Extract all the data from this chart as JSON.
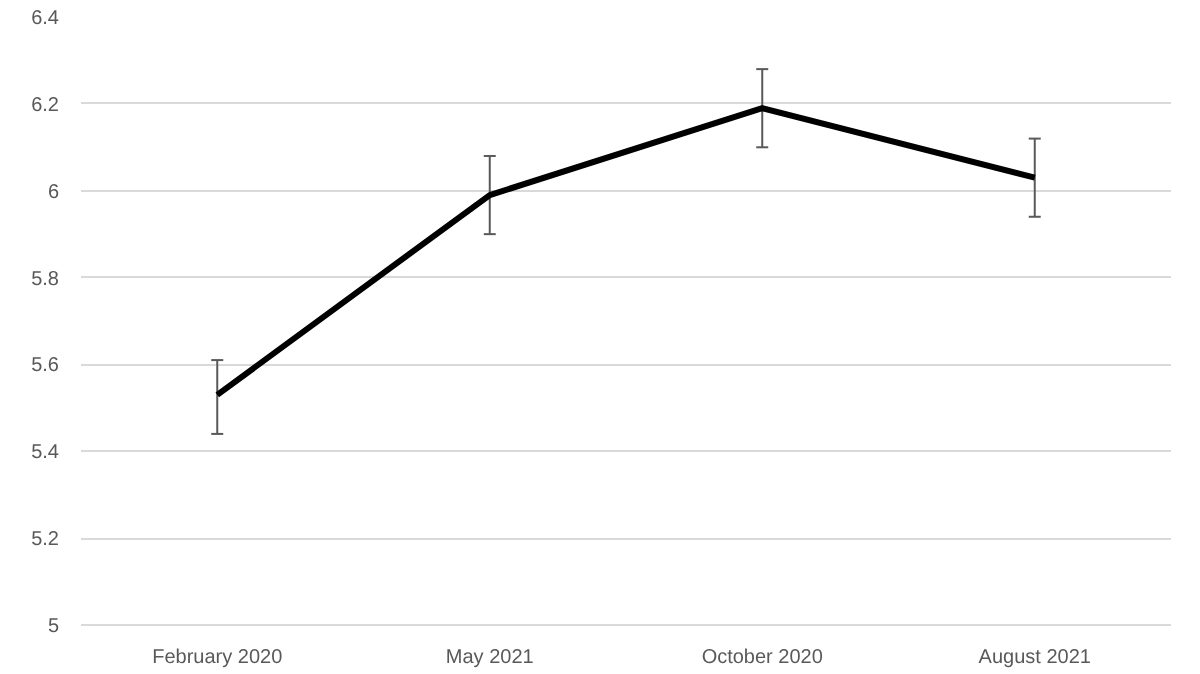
{
  "chart_data": {
    "type": "line",
    "categories": [
      "February 2020",
      "May 2021",
      "October 2020",
      "August 2021"
    ],
    "series": [
      {
        "color": "#000000",
        "values": [
          5.53,
          5.99,
          6.19,
          6.03
        ],
        "errors": [
          [
            5.44,
            5.61
          ],
          [
            5.9,
            6.08
          ],
          [
            6.1,
            6.28
          ],
          [
            5.94,
            6.12
          ]
        ]
      }
    ],
    "ylim": [
      5,
      6.4
    ],
    "yticks": [
      5,
      5.2,
      5.4,
      5.6,
      5.8,
      6,
      6.2,
      6.4
    ],
    "grid": "y",
    "marker": "none",
    "line_style": "solid"
  }
}
